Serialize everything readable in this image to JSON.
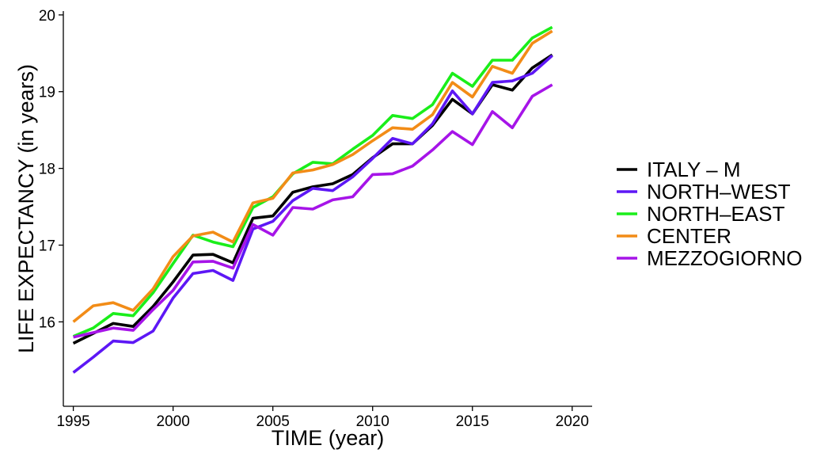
{
  "chart_data": {
    "type": "line",
    "xlabel": "TIME (year)",
    "ylabel": "LIFE EXPECTANCY (in years)",
    "xlim": [
      1994.5,
      2021
    ],
    "ylim": [
      14.9,
      20.05
    ],
    "xticks": [
      1995,
      2000,
      2005,
      2010,
      2015,
      2020
    ],
    "yticks": [
      16,
      17,
      18,
      19,
      20
    ],
    "grid": false,
    "legend_position": "right",
    "x": [
      1995,
      1996,
      1997,
      1998,
      1999,
      2000,
      2001,
      2002,
      2003,
      2004,
      2005,
      2006,
      2007,
      2008,
      2009,
      2010,
      2011,
      2012,
      2013,
      2014,
      2015,
      2016,
      2017,
      2018,
      2019
    ],
    "series": [
      {
        "name": "ITALY – M",
        "color": "#000000",
        "values": [
          15.72,
          15.85,
          15.98,
          15.94,
          16.2,
          16.52,
          16.87,
          16.88,
          16.77,
          17.35,
          17.38,
          17.69,
          17.76,
          17.8,
          17.92,
          18.14,
          18.32,
          18.32,
          18.56,
          18.9,
          18.71,
          19.09,
          19.02,
          19.31,
          19.48
        ]
      },
      {
        "name": "NORTH–WEST",
        "color": "#5D17F5",
        "values": [
          15.34,
          15.54,
          15.75,
          15.73,
          15.88,
          16.31,
          16.63,
          16.67,
          16.54,
          17.21,
          17.31,
          17.58,
          17.74,
          17.71,
          17.89,
          18.13,
          18.39,
          18.32,
          18.58,
          19.01,
          18.71,
          19.12,
          19.14,
          19.24,
          19.47
        ]
      },
      {
        "name": "NORTH–EAST",
        "color": "#1AEE1A",
        "values": [
          15.81,
          15.92,
          16.11,
          16.08,
          16.38,
          16.76,
          17.13,
          17.04,
          16.98,
          17.49,
          17.63,
          17.93,
          18.08,
          18.06,
          18.25,
          18.43,
          18.69,
          18.65,
          18.83,
          19.24,
          19.07,
          19.41,
          19.41,
          19.7,
          19.84
        ]
      },
      {
        "name": "CENTER",
        "color": "#F28C17",
        "values": [
          16.0,
          16.21,
          16.25,
          16.15,
          16.43,
          16.85,
          17.12,
          17.17,
          17.04,
          17.55,
          17.61,
          17.94,
          17.98,
          18.05,
          18.18,
          18.36,
          18.53,
          18.51,
          18.7,
          19.12,
          18.93,
          19.33,
          19.24,
          19.63,
          19.79
        ]
      },
      {
        "name": "MEZZOGIORNO",
        "color": "#A614E8",
        "values": [
          15.8,
          15.86,
          15.92,
          15.89,
          16.16,
          16.41,
          16.78,
          16.79,
          16.7,
          17.27,
          17.13,
          17.49,
          17.47,
          17.59,
          17.63,
          17.92,
          17.93,
          18.03,
          18.24,
          18.48,
          18.31,
          18.74,
          18.53,
          18.94,
          19.09
        ]
      }
    ]
  }
}
